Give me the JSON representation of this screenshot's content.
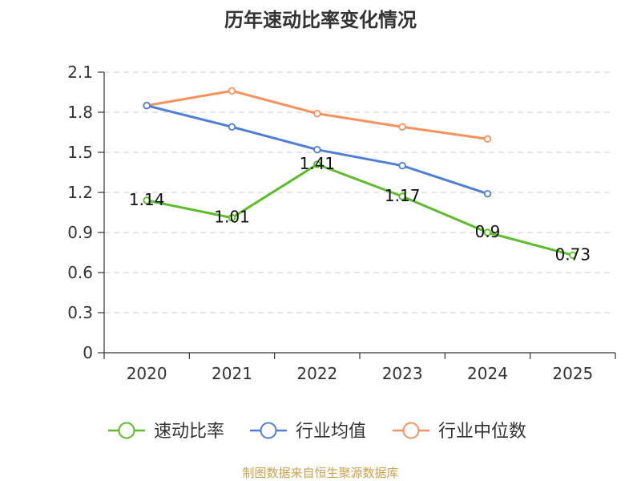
{
  "chart_data": {
    "type": "line",
    "title": "历年速动比率变化情况",
    "xlabel": "",
    "ylabel": "",
    "categories": [
      "2020",
      "2021",
      "2022",
      "2023",
      "2024",
      "2025"
    ],
    "ylim": [
      0,
      2.1
    ],
    "yticks": [
      0,
      0.3,
      0.6,
      0.9,
      1.2,
      1.5,
      1.8,
      2.1
    ],
    "ytick_labels": [
      "0",
      "0.3",
      "0.6",
      "0.9",
      "1.2",
      "1.5",
      "1.8",
      "2.1"
    ],
    "grid": true,
    "legend": "bottom-center",
    "series": [
      {
        "name": "速动比率",
        "color": "#5cbd2b",
        "values": [
          1.14,
          1.01,
          1.41,
          1.17,
          0.9,
          0.73
        ],
        "labels": [
          "1.14",
          "1.01",
          "1.41",
          "1.17",
          "0.9",
          "0.73"
        ]
      },
      {
        "name": "行业均值",
        "color": "#4f7ed8",
        "values": [
          1.85,
          1.69,
          1.52,
          1.4,
          1.19,
          null
        ]
      },
      {
        "name": "行业中位数",
        "color": "#f8915b",
        "values": [
          1.85,
          1.96,
          1.79,
          1.69,
          1.6,
          null
        ]
      }
    ]
  },
  "footer": "制图数据来自恒生聚源数据库"
}
